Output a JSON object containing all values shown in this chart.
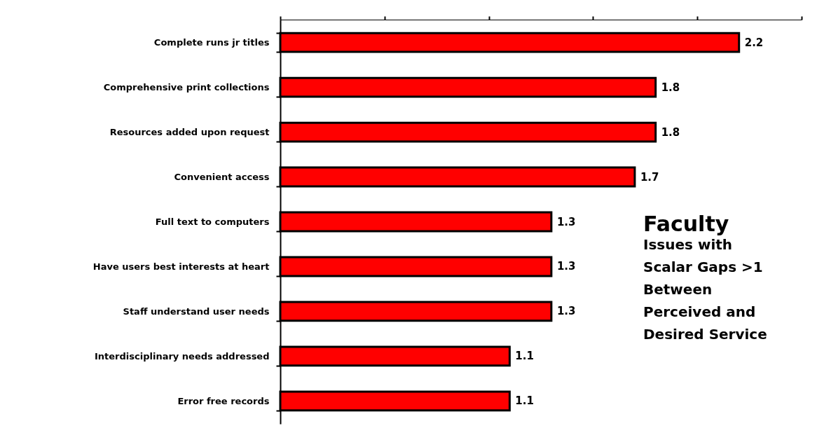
{
  "chart_data": {
    "type": "bar",
    "orientation": "horizontal",
    "title": "Faculty",
    "subtitle": "Issues with Scalar Gaps >1 Between Perceived and Desired Service",
    "categories": [
      "Complete runs jr titles",
      "Comprehensive print collections",
      "Resources added upon request",
      "Convenient access",
      "Full text to computers",
      "Have users best interests at heart",
      "Staff understand user needs",
      "Interdisciplinary needs addressed",
      "Error free records"
    ],
    "values": [
      2.2,
      1.8,
      1.8,
      1.7,
      1.3,
      1.3,
      1.3,
      1.1,
      1.1
    ],
    "color": "#ff0000",
    "xlim": [
      0,
      2.5
    ],
    "xticks": [
      {
        "value": 0,
        "label": null
      },
      {
        "value": 0.5,
        "label": null
      },
      {
        "value": 1,
        "label": null
      },
      {
        "value": 1.5,
        "label": null
      },
      {
        "value": 2,
        "label": null
      },
      {
        "value": 2.5,
        "label": null
      }
    ],
    "tick_labels": "y",
    "data_labels": true,
    "grid": false
  }
}
